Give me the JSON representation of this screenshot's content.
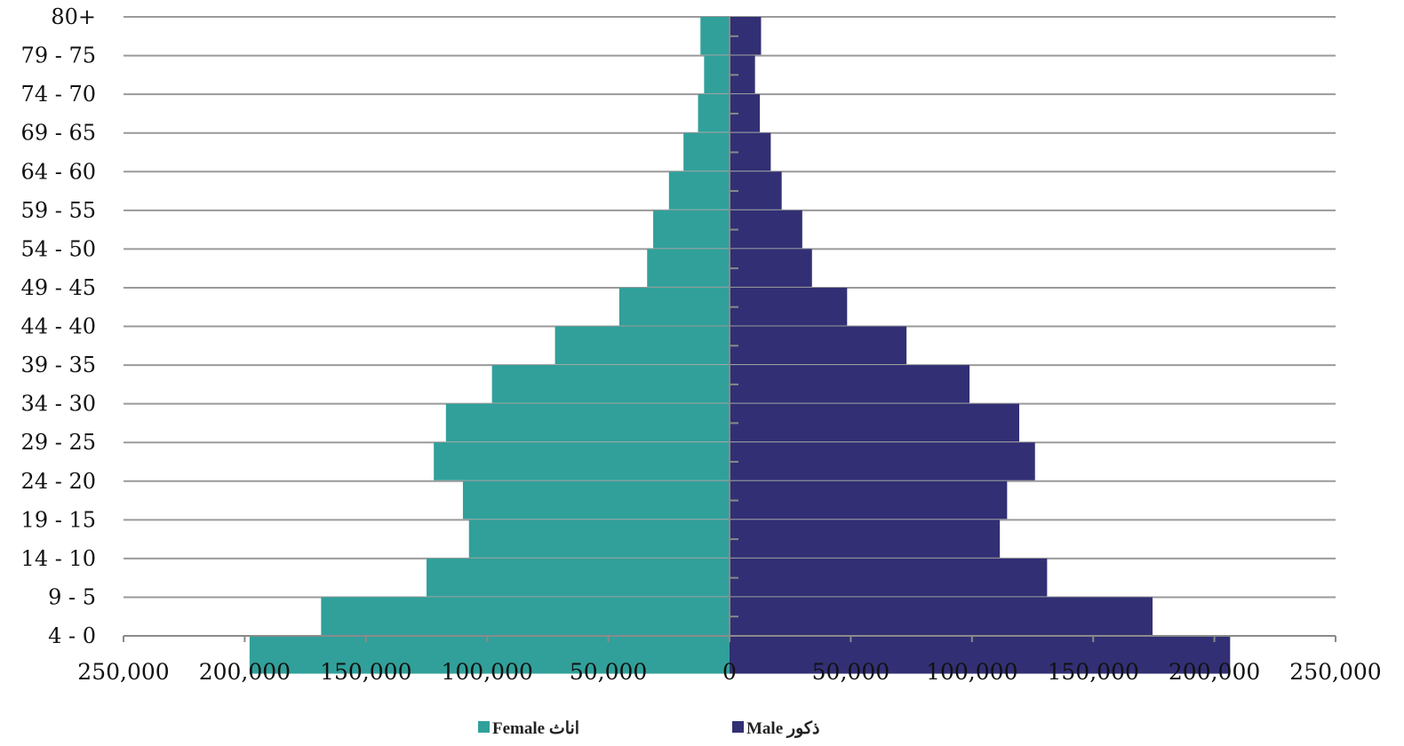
{
  "chart_data": {
    "type": "bar",
    "orientation": "horizontal",
    "subtype": "population-pyramid",
    "title": "",
    "xlabel": "",
    "ylabel": "",
    "categories": [
      "80+",
      "79 - 75",
      "74 - 70",
      "69 - 65",
      "64 - 60",
      "59 - 55",
      "54 - 50",
      "49 - 45",
      "44 - 40",
      "39 - 35",
      "34 - 30",
      "29 - 25",
      "24 - 20",
      "19 - 15",
      "14 - 10",
      "9 - 5",
      "4 - 0"
    ],
    "series": [
      {
        "name": "Female اناث",
        "color": "#31A09A",
        "side": "left",
        "values": [
          12000,
          10500,
          13000,
          19000,
          25000,
          31500,
          34000,
          45500,
          72000,
          98000,
          117000,
          122000,
          110000,
          107500,
          125000,
          168500,
          198000
        ]
      },
      {
        "name": "Male ذكور",
        "color": "#322F74",
        "side": "right",
        "values": [
          13000,
          10500,
          12500,
          17000,
          21500,
          30000,
          34000,
          48500,
          73000,
          99000,
          119500,
          126000,
          114500,
          111500,
          131000,
          174500,
          206500
        ]
      }
    ],
    "xlim": [
      -250000,
      250000
    ],
    "xticks": [
      -250000,
      -200000,
      -150000,
      -100000,
      -50000,
      0,
      50000,
      100000,
      150000,
      200000,
      250000
    ],
    "xtick_labels": [
      "250,000",
      "200,000",
      "150,000",
      "100,000",
      "50,000",
      "0",
      "50,000",
      "100,000",
      "150,000",
      "200,000",
      "250,000"
    ],
    "grid": true,
    "legend": {
      "position": "bottom-center",
      "items": [
        {
          "label": "Female اناث",
          "color": "#31A09A"
        },
        {
          "label": "Male ذكور",
          "color": "#322F74"
        }
      ]
    }
  }
}
